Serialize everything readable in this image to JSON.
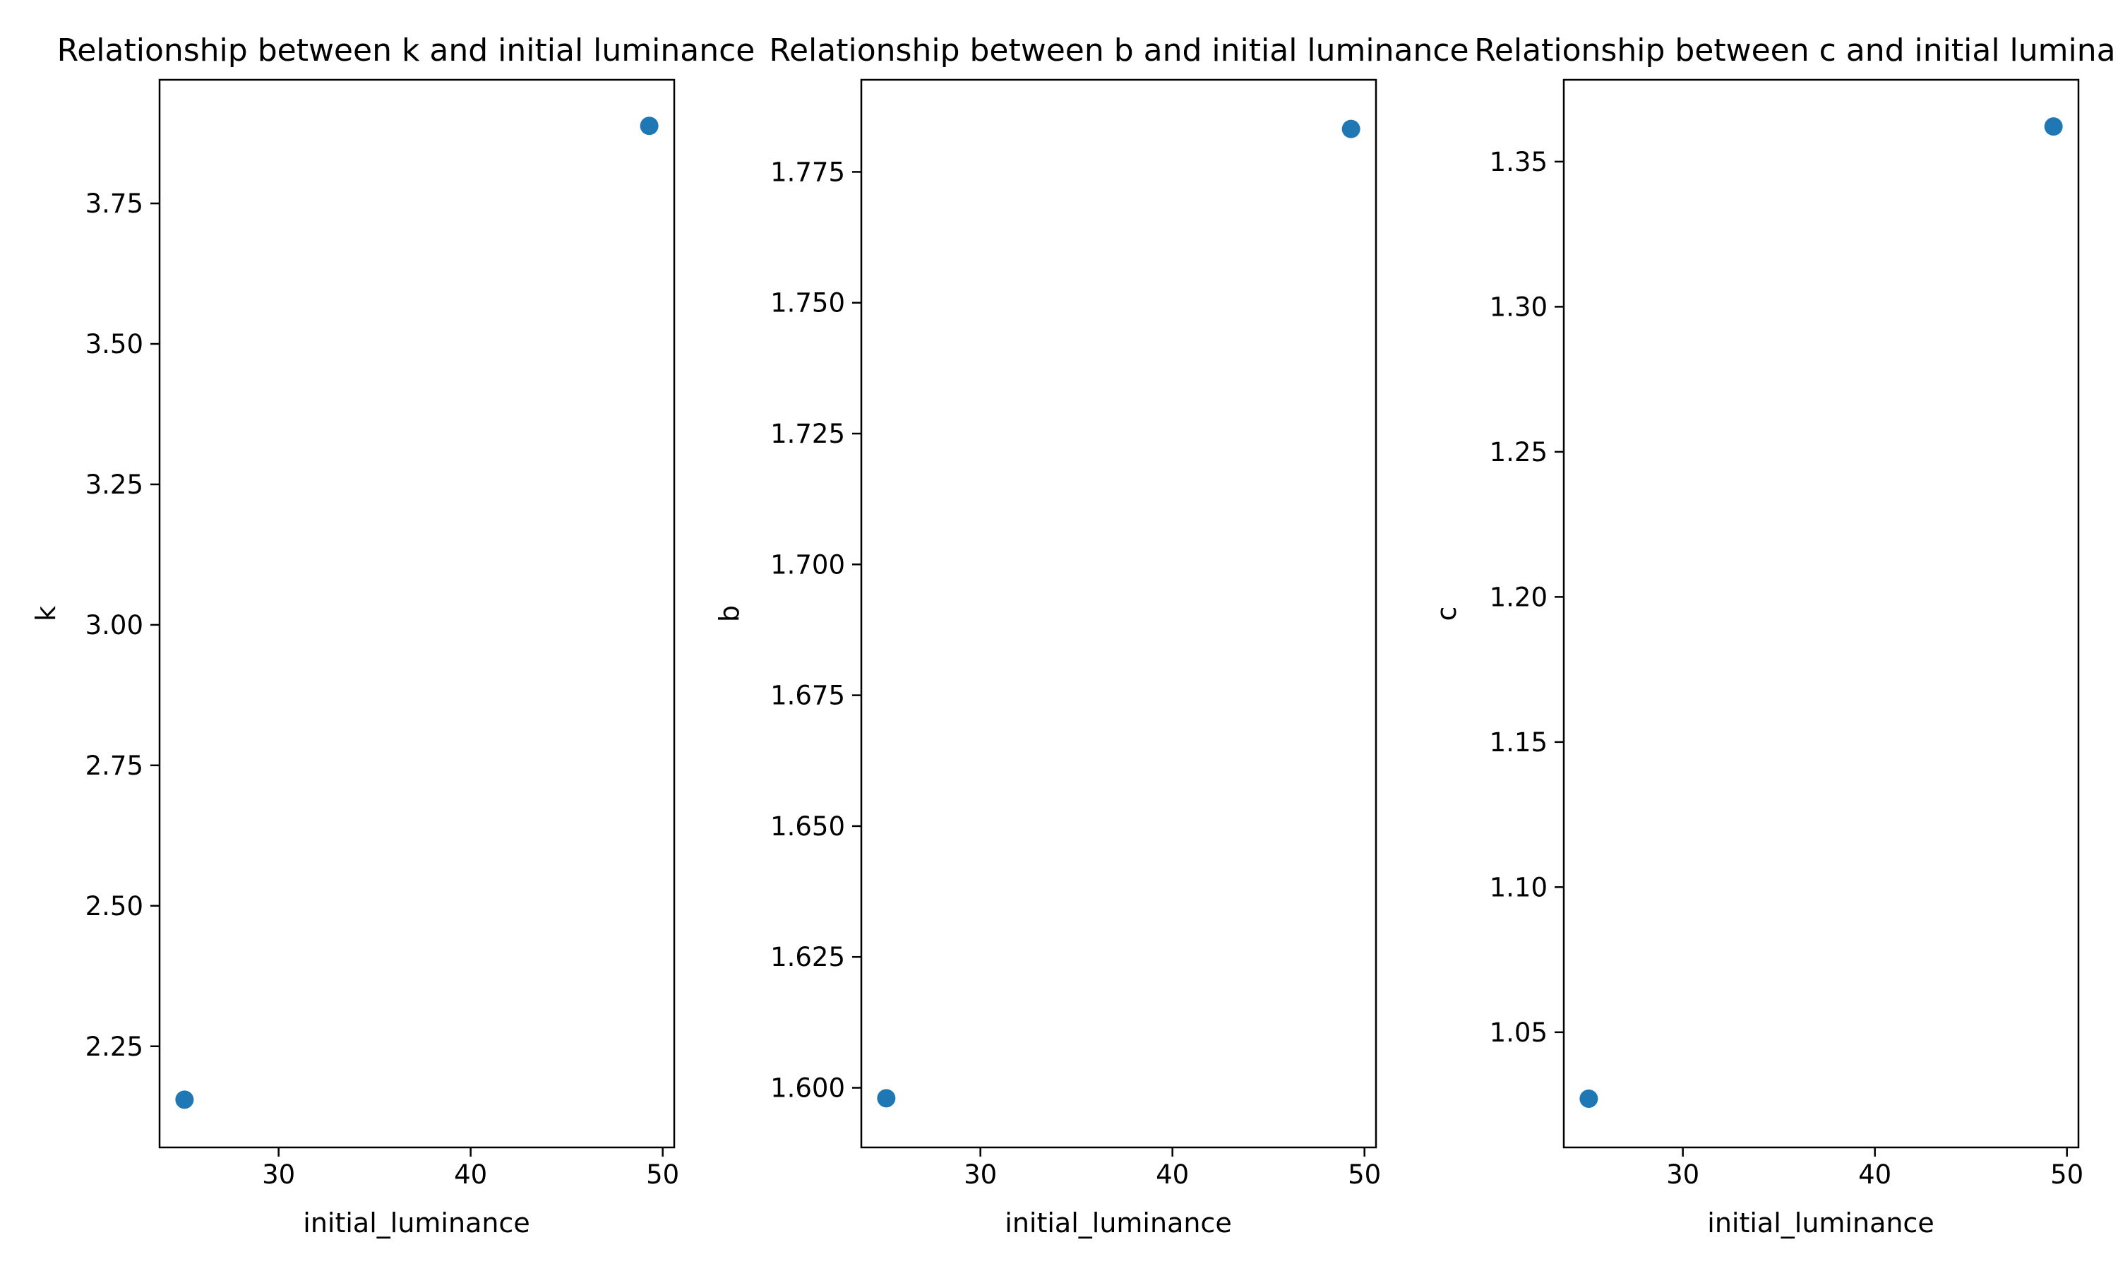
{
  "chart_data": [
    {
      "type": "scatter",
      "title": "Relationship between k and initial luminance",
      "xlabel": "initial_luminance",
      "ylabel": "k",
      "xlim": [
        23.8,
        50.6
      ],
      "ylim": [
        2.07,
        3.97
      ],
      "xticks": [
        30,
        40,
        50
      ],
      "xtick_labels": [
        "30",
        "40",
        "50"
      ],
      "yticks": [
        2.25,
        2.5,
        2.75,
        3.0,
        3.25,
        3.5,
        3.75
      ],
      "ytick_labels": [
        "2.25",
        "2.50",
        "2.75",
        "3.00",
        "3.25",
        "3.50",
        "3.75"
      ],
      "grid": false,
      "color": "#1f77b4",
      "points": [
        {
          "x": 25.1,
          "y": 2.155
        },
        {
          "x": 49.3,
          "y": 3.888
        }
      ]
    },
    {
      "type": "scatter",
      "title": "Relationship between b and initial luminance",
      "xlabel": "initial_luminance",
      "ylabel": "b",
      "xlim": [
        23.8,
        50.6
      ],
      "ylim": [
        1.5886,
        1.7926
      ],
      "xticks": [
        30,
        40,
        50
      ],
      "xtick_labels": [
        "30",
        "40",
        "50"
      ],
      "yticks": [
        1.6,
        1.625,
        1.65,
        1.675,
        1.7,
        1.725,
        1.75,
        1.775
      ],
      "ytick_labels": [
        "1.600",
        "1.625",
        "1.650",
        "1.675",
        "1.700",
        "1.725",
        "1.750",
        "1.775"
      ],
      "grid": false,
      "color": "#1f77b4",
      "points": [
        {
          "x": 25.1,
          "y": 1.598
        },
        {
          "x": 49.3,
          "y": 1.7832
        }
      ]
    },
    {
      "type": "scatter",
      "title": "Relationship between c and initial luminance",
      "xlabel": "initial_luminance",
      "ylabel": "c",
      "xlim": [
        23.8,
        50.6
      ],
      "ylim": [
        1.0103,
        1.3782
      ],
      "xticks": [
        30,
        40,
        50
      ],
      "xtick_labels": [
        "30",
        "40",
        "50"
      ],
      "yticks": [
        1.05,
        1.1,
        1.15,
        1.2,
        1.25,
        1.3,
        1.35
      ],
      "ytick_labels": [
        "1.05",
        "1.10",
        "1.15",
        "1.20",
        "1.25",
        "1.30",
        "1.35"
      ],
      "grid": false,
      "color": "#1f77b4",
      "points": [
        {
          "x": 25.1,
          "y": 1.0271
        },
        {
          "x": 49.3,
          "y": 1.3621
        }
      ]
    }
  ]
}
